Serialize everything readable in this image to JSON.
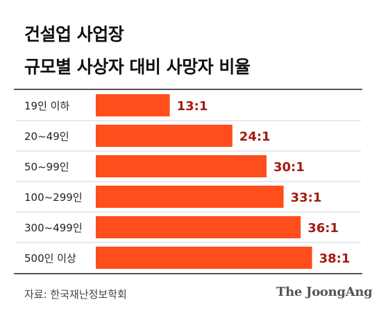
{
  "title": {
    "line1": "건설업 사업장",
    "line2": "규모별 사상자 대비 사망자 비율"
  },
  "chart_data": {
    "type": "bar",
    "orientation": "horizontal",
    "categories": [
      "19인 이하",
      "20~49인",
      "50~99인",
      "100~299인",
      "300~499인",
      "500인 이상"
    ],
    "values": [
      13,
      24,
      30,
      33,
      36,
      38
    ],
    "value_labels": [
      "13:1",
      "24:1",
      "30:1",
      "33:1",
      "36:1",
      "38:1"
    ],
    "xlim": [
      0,
      40
    ],
    "grid": false,
    "colors": {
      "bar": "#ff4d1c",
      "value_text": "#a31b12",
      "separator": "#d0d0d0"
    }
  },
  "footer": {
    "source": "자료: 한국재난정보학회",
    "logo": "The JoongAng"
  }
}
